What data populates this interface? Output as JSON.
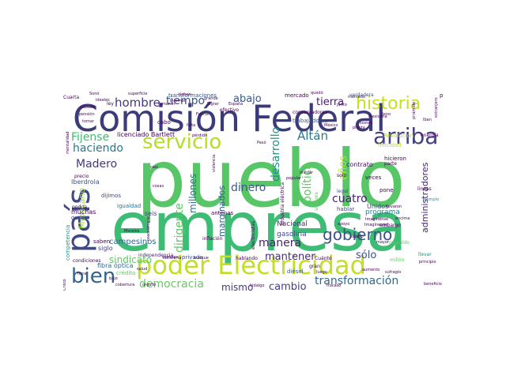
{
  "image": {
    "type": "word_cloud",
    "background_color": "#ffffff",
    "palette": [
      "#440154",
      "#3b528b",
      "#21918c",
      "#5ec962",
      "#b5de2b",
      "#fde725"
    ]
  },
  "words": [
    {
      "text": "pueblo",
      "color": "#56c667"
    },
    {
      "text": "empresa",
      "color": "#3dbc74"
    },
    {
      "text": "Comisión Federal",
      "color": "#3b3a7a"
    },
    {
      "text": "poder Electricidad",
      "color": "#c2df23"
    },
    {
      "text": "servicio",
      "color": "#b5de2b"
    },
    {
      "text": "arriba",
      "color": "#433e85"
    },
    {
      "text": "historia",
      "color": "#c8e020"
    },
    {
      "text": "país",
      "color": "#3f4889"
    },
    {
      "text": "bien",
      "color": "#33638d"
    },
    {
      "text": "Altán",
      "color": "#2a788e"
    },
    {
      "text": "gobierno",
      "color": "#3b528b"
    },
    {
      "text": "democracia",
      "color": "#65cb5e"
    },
    {
      "text": "transformación",
      "color": "#31688e"
    },
    {
      "text": "hombre",
      "color": "#443983"
    },
    {
      "text": "tiempo",
      "color": "#3a548c"
    },
    {
      "text": "abajo",
      "color": "#38588c"
    },
    {
      "text": "tierra",
      "color": "#481c6e"
    },
    {
      "text": "Fijense",
      "color": "#3dbc74"
    },
    {
      "text": "haciendo",
      "color": "#2a788e"
    },
    {
      "text": "Madero",
      "color": "#443a83"
    },
    {
      "text": "desarrollo",
      "color": "#21918c"
    },
    {
      "text": "dinero",
      "color": "#38598c"
    },
    {
      "text": "cuatro",
      "color": "#482173"
    },
    {
      "text": "manera",
      "color": "#481f70"
    },
    {
      "text": "mantener",
      "color": "#472c7a"
    },
    {
      "text": "sólo",
      "color": "#3b528b"
    },
    {
      "text": "cambio",
      "color": "#433e85"
    },
    {
      "text": "sindicato",
      "color": "#5ec962"
    },
    {
      "text": "mismo",
      "color": "#453781"
    },
    {
      "text": "millones",
      "color": "#2c718e"
    },
    {
      "text": "dirigente",
      "color": "#5ec962"
    },
    {
      "text": "marginados",
      "color": "#38598c"
    },
    {
      "text": "política",
      "color": "#5ec962"
    },
    {
      "text": "años",
      "color": "#b5de2b"
    },
    {
      "text": "administradores",
      "color": "#482475"
    },
    {
      "text": "Mexicano",
      "color": "#9bd93c"
    },
    {
      "text": "campesinos",
      "color": "#31688e"
    },
    {
      "text": "Nacional",
      "color": "#46327e"
    },
    {
      "text": "gasolina",
      "color": "#3e4989"
    },
    {
      "text": "programa",
      "color": "#26828e"
    },
    {
      "text": "Unidos",
      "color": "#414487"
    },
    {
      "text": "contrato",
      "color": "#471365"
    },
    {
      "text": "licenciado Bartlett",
      "color": "#440154"
    },
    {
      "text": "transformaciones",
      "color": "#3b528b"
    },
    {
      "text": "mercado",
      "color": "#440154"
    },
    {
      "text": "verdadera",
      "color": "#3b528b"
    },
    {
      "text": "pudo",
      "color": "#440154"
    },
    {
      "text": "Iberdrola",
      "color": "#3b528b"
    },
    {
      "text": "muchas",
      "color": "#440154"
    },
    {
      "text": "gusto",
      "color": "#3b528b"
    },
    {
      "text": "competencia",
      "color": "#21918c"
    },
    {
      "text": "crédito",
      "color": "#5ec962"
    },
    {
      "text": "fibra óptica",
      "color": "#31688e"
    },
    {
      "text": "siglo",
      "color": "#443983"
    },
    {
      "text": "independencia",
      "color": "#481f70"
    },
    {
      "text": "privada",
      "color": "#3b528b"
    },
    {
      "text": "seis",
      "color": "#433e85"
    },
    {
      "text": "igualdad",
      "color": "#2c718e"
    },
    {
      "text": "dijimos",
      "color": "#414487"
    },
    {
      "text": "saben",
      "color": "#440154"
    },
    {
      "text": "antenas",
      "color": "#440154"
    },
    {
      "text": "hablar",
      "color": "#414487"
    },
    {
      "text": "diésel",
      "color": "#3b528b"
    },
    {
      "text": "embargo",
      "color": "#440154"
    },
    {
      "text": "llevar",
      "color": "#21918c"
    },
    {
      "text": "veces",
      "color": "#440154"
    },
    {
      "text": "pone",
      "color": "#440154"
    },
    {
      "text": "lineas",
      "color": "#440154"
    },
    {
      "text": "hicieron",
      "color": "#440154"
    },
    {
      "text": "parte",
      "color": "#440154"
    },
    {
      "text": "legal",
      "color": "#3b528b"
    },
    {
      "text": "solo",
      "color": "#440154"
    },
    {
      "text": "siguiera",
      "color": "#5ec962"
    },
    {
      "text": "trabajadores",
      "color": "#3b528b"
    },
    {
      "text": "conservadores",
      "color": "#440154"
    },
    {
      "text": "industria eléctrica",
      "color": "#440154"
    },
    {
      "text": "felicidad",
      "color": "#b5de2b"
    },
    {
      "text": "Revolución",
      "color": "#b5de2b"
    },
    {
      "text": "energía",
      "color": "#440154"
    },
    {
      "text": "cabo",
      "color": "#440154"
    },
    {
      "text": "Cuarta",
      "color": "#440154"
    },
    {
      "text": "pasado",
      "color": "#440154"
    },
    {
      "text": "pensión",
      "color": "#440154"
    },
    {
      "text": "tomar",
      "color": "#440154"
    },
    {
      "text": "ideales",
      "color": "#440154"
    },
    {
      "text": "mentalidad",
      "color": "#440154"
    },
    {
      "text": "Cristo",
      "color": "#440154"
    },
    {
      "text": "precio",
      "color": "#440154"
    },
    {
      "text": "podría",
      "color": "#440154"
    },
    {
      "text": "condiciones",
      "color": "#440154"
    },
    {
      "text": "cobertura",
      "color": "#440154"
    },
    {
      "text": "hidalgo",
      "color": "#440154"
    },
    {
      "text": "fracaso",
      "color": "#440154"
    },
    {
      "text": "beneficio",
      "color": "#440154"
    },
    {
      "text": "sufragio",
      "color": "#440154"
    },
    {
      "text": "millón",
      "color": "#5ec962"
    },
    {
      "text": "principio",
      "color": "#440154"
    },
    {
      "text": "ejemplo",
      "color": "#21918c"
    },
    {
      "text": "encima",
      "color": "#440154"
    },
    {
      "text": "Imagínense",
      "color": "#440154"
    },
    {
      "text": "inflación",
      "color": "#440154"
    },
    {
      "text": "aunque",
      "color": "#440154"
    },
    {
      "text": "salud",
      "color": "#440154"
    },
    {
      "text": "Cuánto",
      "color": "#440154"
    },
    {
      "text": "gran",
      "color": "#440154"
    },
    {
      "text": "luego",
      "color": "#440154"
    },
    {
      "text": "efectivo",
      "color": "#440154"
    },
    {
      "text": "electricistas",
      "color": "#440154"
    },
    {
      "text": "llevaron",
      "color": "#440154"
    },
    {
      "text": "respaldo",
      "color": "#5ec962"
    },
    {
      "text": "mayor",
      "color": "#440154"
    },
    {
      "text": "aumento",
      "color": "#440154"
    },
    {
      "text": "popular",
      "color": "#440154"
    },
    {
      "text": "apoyo",
      "color": "#440154"
    },
    {
      "text": "olvidar",
      "color": "#440154"
    },
    {
      "text": "quedó",
      "color": "#440154"
    },
    {
      "text": "España",
      "color": "#440154"
    },
    {
      "text": "lograr",
      "color": "#440154"
    },
    {
      "text": "grande",
      "color": "#440154"
    },
    {
      "text": "Fuerte",
      "color": "#440154"
    },
    {
      "text": "tienen",
      "color": "#440154"
    },
    {
      "text": "pirámide",
      "color": "#440154"
    },
    {
      "text": "Iban",
      "color": "#440154"
    },
    {
      "text": "extranjero",
      "color": "#440154"
    },
    {
      "text": "mercado",
      "color": "#440154"
    },
    {
      "text": "ley",
      "color": "#440154"
    },
    {
      "text": "Internet",
      "color": "#440154"
    },
    {
      "text": "Mexicana",
      "color": "#440154"
    },
    {
      "text": "sostén",
      "color": "#440154"
    },
    {
      "text": "hablando",
      "color": "#440154"
    },
    {
      "text": "junto",
      "color": "#440154"
    },
    {
      "text": "convierta",
      "color": "#440154"
    },
    {
      "text": "Morelos",
      "color": "#440154"
    },
    {
      "text": "bajo",
      "color": "#440154"
    },
    {
      "text": "sociales",
      "color": "#440154"
    },
    {
      "text": "reaccionario",
      "color": "#440154"
    },
    {
      "text": "violencia",
      "color": "#440154"
    },
    {
      "text": "falta",
      "color": "#440154"
    },
    {
      "text": "superficie",
      "color": "#440154"
    },
    {
      "text": "Sonó",
      "color": "#440154"
    },
    {
      "text": "salario",
      "color": "#440154"
    },
    {
      "text": "hora",
      "color": "#440154"
    },
    {
      "text": "lleno",
      "color": "#440154"
    },
    {
      "text": "México",
      "color": "#440154"
    },
    {
      "text": "orgullo",
      "color": "#440154"
    },
    {
      "text": "cosas",
      "color": "#440154"
    },
    {
      "text": "casi",
      "color": "#440154"
    },
    {
      "text": "pérdida",
      "color": "#440154"
    },
    {
      "text": "Pasó",
      "color": "#440154"
    },
    {
      "text": "planta",
      "color": "#440154"
    },
    {
      "text": "tomaron",
      "color": "#440154"
    },
    {
      "text": "Imagínense",
      "color": "#440154"
    }
  ]
}
